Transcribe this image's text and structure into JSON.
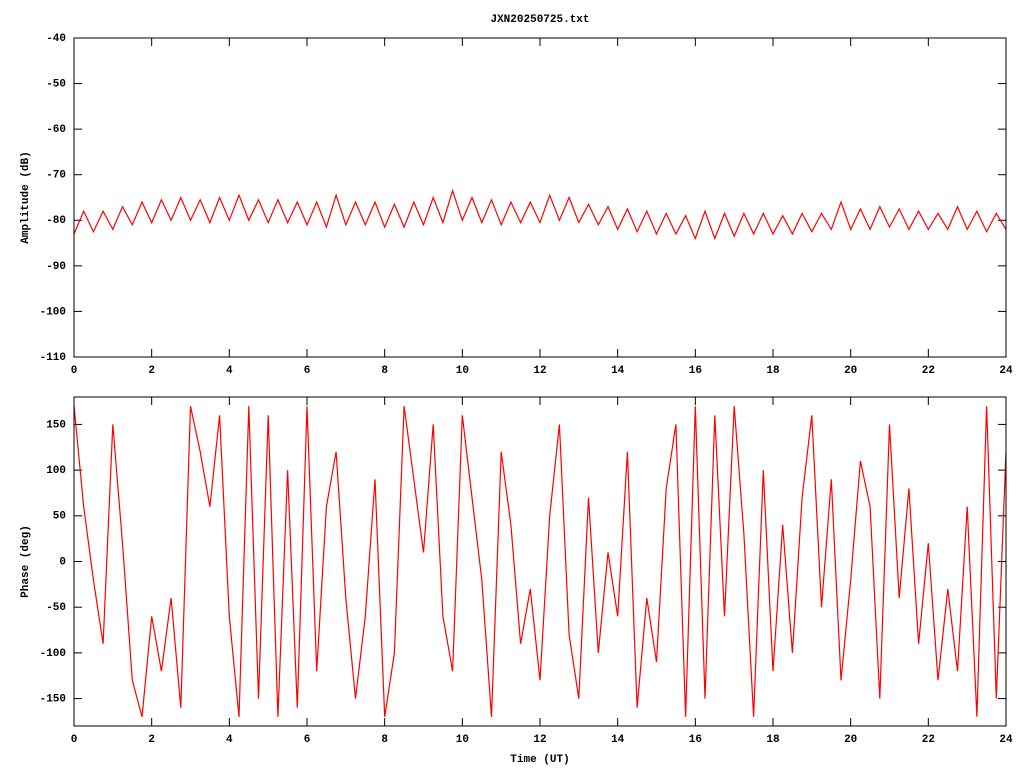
{
  "chart_data": [
    {
      "type": "line",
      "title": "JXN20250725.txt",
      "ylabel": "Amplitude (dB)",
      "xlim": [
        0,
        24
      ],
      "xticks": [
        0,
        2,
        4,
        6,
        8,
        10,
        12,
        14,
        16,
        18,
        20,
        22,
        24
      ],
      "ylim": [
        -110,
        -40
      ],
      "yticks": [
        -110,
        -100,
        -90,
        -80,
        -70,
        -60,
        -50,
        -40
      ],
      "series": [
        {
          "color": "#ff0000",
          "x": [
            0,
            0.25,
            0.5,
            0.75,
            1,
            1.25,
            1.5,
            1.75,
            2,
            2.25,
            2.5,
            2.75,
            3,
            3.25,
            3.5,
            3.75,
            4,
            4.25,
            4.5,
            4.75,
            5,
            5.25,
            5.5,
            5.75,
            6,
            6.25,
            6.5,
            6.75,
            7,
            7.25,
            7.5,
            7.75,
            8,
            8.25,
            8.5,
            8.75,
            9,
            9.25,
            9.5,
            9.75,
            10,
            10.25,
            10.5,
            10.75,
            11,
            11.25,
            11.5,
            11.75,
            12,
            12.25,
            12.5,
            12.75,
            13,
            13.25,
            13.5,
            13.75,
            14,
            14.25,
            14.5,
            14.75,
            15,
            15.25,
            15.5,
            15.75,
            16,
            16.25,
            16.5,
            16.75,
            17,
            17.25,
            17.5,
            17.75,
            18,
            18.25,
            18.5,
            18.75,
            19,
            19.25,
            19.5,
            19.75,
            20,
            20.25,
            20.5,
            20.75,
            21,
            21.25,
            21.5,
            21.75,
            22,
            22.25,
            22.5,
            22.75,
            23,
            23.25,
            23.5,
            23.75,
            24
          ],
          "values": [
            -83,
            -78,
            -82.5,
            -78,
            -82,
            -77,
            -81,
            -76,
            -80.5,
            -75.5,
            -80,
            -75,
            -80,
            -75.5,
            -80.5,
            -75,
            -80,
            -74.5,
            -80,
            -75.5,
            -80.5,
            -75.5,
            -80.5,
            -76,
            -81,
            -76,
            -81.5,
            -74.5,
            -81,
            -76,
            -81,
            -76,
            -81.5,
            -76.5,
            -81.5,
            -76,
            -81,
            -75,
            -80.5,
            -73.5,
            -80,
            -75,
            -80.5,
            -75.5,
            -81,
            -76,
            -80.5,
            -76,
            -80.5,
            -74.5,
            -80,
            -75,
            -80.5,
            -76.5,
            -81,
            -77,
            -82,
            -77.5,
            -82.5,
            -78,
            -83,
            -78.5,
            -83,
            -79,
            -84,
            -78,
            -84,
            -78.5,
            -83.5,
            -78.5,
            -83,
            -78.5,
            -83,
            -79,
            -83,
            -78.5,
            -82.5,
            -78.5,
            -82,
            -76,
            -82,
            -77.5,
            -82,
            -77,
            -81.5,
            -77.5,
            -82,
            -78,
            -82,
            -78.5,
            -82,
            -77,
            -82,
            -78,
            -82.5,
            -78.5,
            -82
          ]
        }
      ]
    },
    {
      "type": "line",
      "xlabel": "Time (UT)",
      "ylabel": "Phase (deg)",
      "xlim": [
        0,
        24
      ],
      "xticks": [
        0,
        2,
        4,
        6,
        8,
        10,
        12,
        14,
        16,
        18,
        20,
        22,
        24
      ],
      "ylim": [
        -180,
        180
      ],
      "yticks": [
        -150,
        -100,
        -50,
        0,
        50,
        100,
        150
      ],
      "series": [
        {
          "color": "#ff0000",
          "x": [
            0,
            0.25,
            0.5,
            0.75,
            1,
            1.25,
            1.5,
            1.75,
            2,
            2.25,
            2.5,
            2.75,
            3,
            3.25,
            3.5,
            3.75,
            4,
            4.25,
            4.5,
            4.75,
            5,
            5.25,
            5.5,
            5.75,
            6,
            6.25,
            6.5,
            6.75,
            7,
            7.25,
            7.5,
            7.75,
            8,
            8.25,
            8.5,
            8.75,
            9,
            9.25,
            9.5,
            9.75,
            10,
            10.25,
            10.5,
            10.75,
            11,
            11.25,
            11.5,
            11.75,
            12,
            12.25,
            12.5,
            12.75,
            13,
            13.25,
            13.5,
            13.75,
            14,
            14.25,
            14.5,
            14.75,
            15,
            15.25,
            15.5,
            15.75,
            16,
            16.25,
            16.5,
            16.75,
            17,
            17.25,
            17.5,
            17.75,
            18,
            18.25,
            18.5,
            18.75,
            19,
            19.25,
            19.5,
            19.75,
            20,
            20.25,
            20.5,
            20.75,
            21,
            21.25,
            21.5,
            21.75,
            22,
            22.25,
            22.5,
            22.75,
            23,
            23.25,
            23.5,
            23.75,
            24
          ],
          "values": [
            170,
            60,
            -20,
            -90,
            150,
            20,
            -130,
            -170,
            -60,
            -120,
            -40,
            -160,
            170,
            120,
            60,
            160,
            -60,
            -170,
            170,
            -150,
            160,
            -170,
            100,
            -160,
            170,
            -120,
            60,
            120,
            -40,
            -150,
            -60,
            90,
            -170,
            -100,
            170,
            90,
            10,
            150,
            -60,
            -120,
            160,
            70,
            -20,
            -170,
            120,
            40,
            -90,
            -30,
            -130,
            50,
            150,
            -80,
            -150,
            70,
            -100,
            10,
            -60,
            120,
            -160,
            -40,
            -110,
            80,
            150,
            -170,
            170,
            -150,
            160,
            -60,
            170,
            30,
            -170,
            100,
            -120,
            40,
            -100,
            70,
            160,
            -50,
            90,
            -130,
            -20,
            110,
            60,
            -150,
            150,
            -40,
            80,
            -90,
            20,
            -130,
            -30,
            -120,
            60,
            -170,
            170,
            -150,
            120
          ]
        }
      ]
    }
  ]
}
